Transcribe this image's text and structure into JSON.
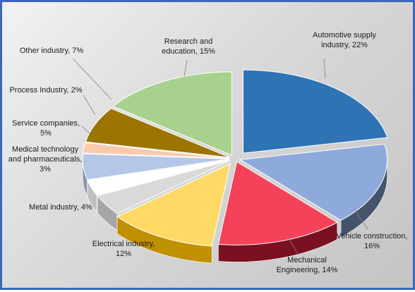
{
  "chart_data": {
    "type": "pie",
    "style": "3d-exploded",
    "title": "",
    "legend": "none",
    "slices": [
      {
        "name": "Automotive supply industry",
        "value": 22,
        "label_lines": [
          "Automotive supply",
          "industry, 22%"
        ],
        "color": "#2e74b5",
        "side_color": "#1f4e79"
      },
      {
        "name": "Vehicle construction",
        "value": 16,
        "label_lines": [
          "Vehicle construction,",
          "16%"
        ],
        "color": "#8eaadb",
        "side_color": "#44546a"
      },
      {
        "name": "Mechanical Engineering",
        "value": 14,
        "label_lines": [
          "Mechanical",
          "Engineering, 14%"
        ],
        "color": "#f4425a",
        "side_color": "#7a1020"
      },
      {
        "name": "Electrical industry",
        "value": 12,
        "label_lines": [
          "Electrical industry,",
          "12%"
        ],
        "color": "#ffd966",
        "side_color": "#bf9000"
      },
      {
        "name": "Metal industry",
        "value": 4,
        "label_lines": [
          "Metal industry, 4%"
        ],
        "color": "#d9d9d9",
        "side_color": "#a6a6a6"
      },
      {
        "name": "Medical technology and pharmaceuticals",
        "value": 3,
        "label_lines": [
          "Medical technology",
          "and pharmaceuticals,",
          "3%"
        ],
        "color": "#ffffff",
        "side_color": "#bfbfbf"
      },
      {
        "name": "Service companies",
        "value": 5,
        "label_lines": [
          "Service companies,",
          "5%"
        ],
        "color": "#b4c7e7",
        "side_color": "#8497b0"
      },
      {
        "name": "Process Industry",
        "value": 2,
        "label_lines": [
          "Process Industry,  2%"
        ],
        "color": "#f8cbad",
        "side_color": "#c9a08a"
      },
      {
        "name": "Other industry",
        "value": 7,
        "label_lines": [
          "Other industry, 7%"
        ],
        "color": "#9c7400",
        "side_color": "#6b5000"
      },
      {
        "name": "Research and education",
        "value": 15,
        "label_lines": [
          "Research and",
          "education, 15%"
        ],
        "color": "#a9d18e",
        "side_color": "#70ad47"
      }
    ]
  }
}
